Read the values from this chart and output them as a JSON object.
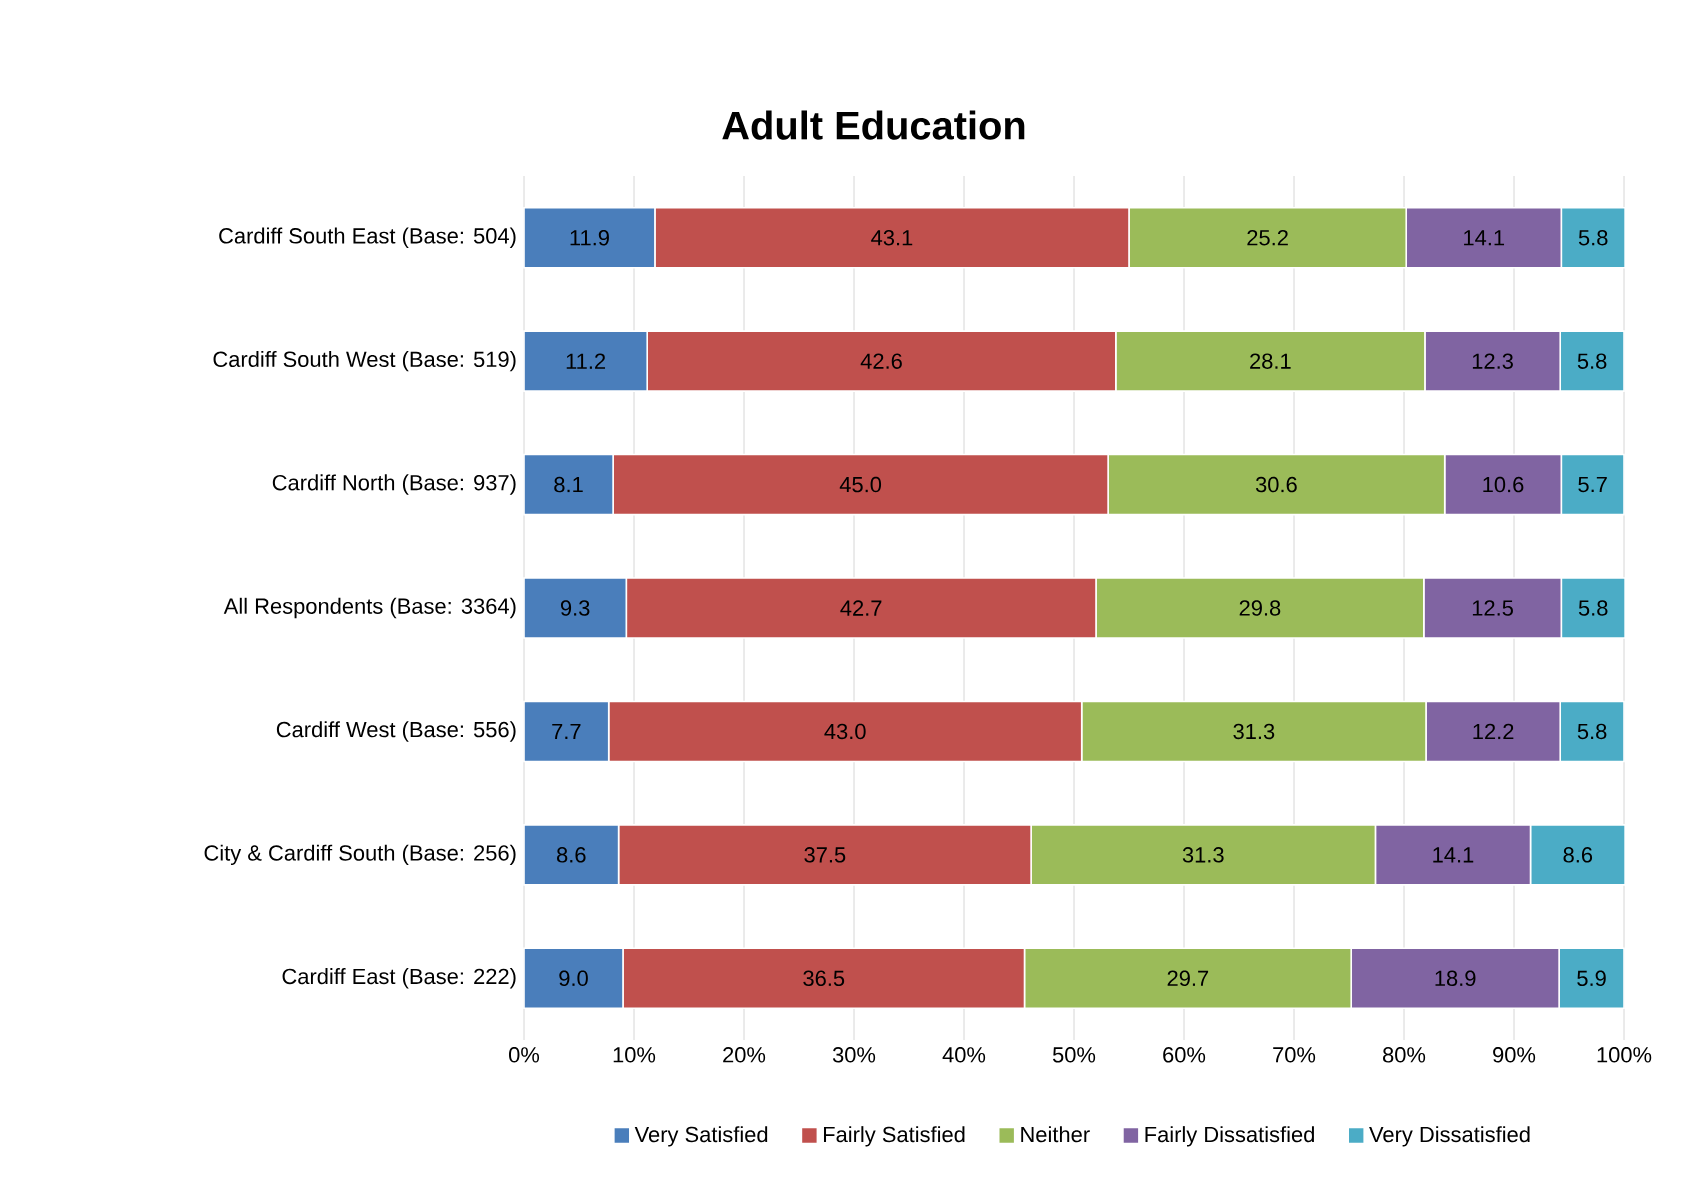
{
  "chart_data": {
    "type": "bar",
    "orientation": "horizontal",
    "stacked": true,
    "title": "Adult Education",
    "categories": [
      "Cardiff South East (Base: 504)",
      "Cardiff South West (Base: 519)",
      "Cardiff North (Base: 937)",
      "All Respondents (Base: 3364)",
      "Cardiff West (Base: 556)",
      "City & Cardiff South (Base: 256)",
      "Cardiff East (Base: 222)"
    ],
    "series": [
      {
        "name": "Very Satisfied",
        "color": "#4a7ebb",
        "values": [
          11.9,
          11.2,
          8.1,
          9.3,
          7.7,
          8.6,
          9.0
        ],
        "value_labels": [
          "11.9",
          "11.2",
          "8.1",
          "9.3",
          "7.7",
          "8.6",
          "9.0"
        ]
      },
      {
        "name": "Fairly Satisfied",
        "color": "#c0504d",
        "values": [
          43.1,
          42.6,
          45.0,
          42.7,
          43.0,
          37.5,
          36.5
        ],
        "value_labels": [
          "43.1",
          "42.6",
          "45.0",
          "42.7",
          "43.0",
          "37.5",
          "36.5"
        ]
      },
      {
        "name": "Neither",
        "color": "#9bbb59",
        "values": [
          25.2,
          28.1,
          30.6,
          29.8,
          31.3,
          31.3,
          29.7
        ],
        "value_labels": [
          "25.2",
          "28.1",
          "30.6",
          "29.8",
          "31.3",
          "31.3",
          "29.7"
        ]
      },
      {
        "name": "Fairly Dissatisfied",
        "color": "#8064a2",
        "values": [
          14.1,
          12.3,
          10.6,
          12.5,
          12.2,
          14.1,
          18.9
        ],
        "value_labels": [
          "14.1",
          "12.3",
          "10.6",
          "12.5",
          "12.2",
          "14.1",
          "18.9"
        ]
      },
      {
        "name": "Very Dissatisfied",
        "color": "#4bacc6",
        "values": [
          5.8,
          5.8,
          5.7,
          5.8,
          5.8,
          8.6,
          5.9
        ],
        "value_labels": [
          "5.8",
          "5.8",
          "5.7",
          "5.8",
          "5.8",
          "8.6",
          "5.9"
        ]
      }
    ],
    "xlim": [
      0,
      100
    ],
    "xticks": [
      {
        "value": 0,
        "label": "0%"
      },
      {
        "value": 10,
        "label": "10%"
      },
      {
        "value": 20,
        "label": "20%"
      },
      {
        "value": 30,
        "label": "30%"
      },
      {
        "value": 40,
        "label": "40%"
      },
      {
        "value": 50,
        "label": "50%"
      },
      {
        "value": 60,
        "label": "60%"
      },
      {
        "value": 70,
        "label": "70%"
      },
      {
        "value": 80,
        "label": "80%"
      },
      {
        "value": 90,
        "label": "90%"
      },
      {
        "value": 100,
        "label": "100%"
      }
    ],
    "grid": "x",
    "legend": "bottom"
  }
}
